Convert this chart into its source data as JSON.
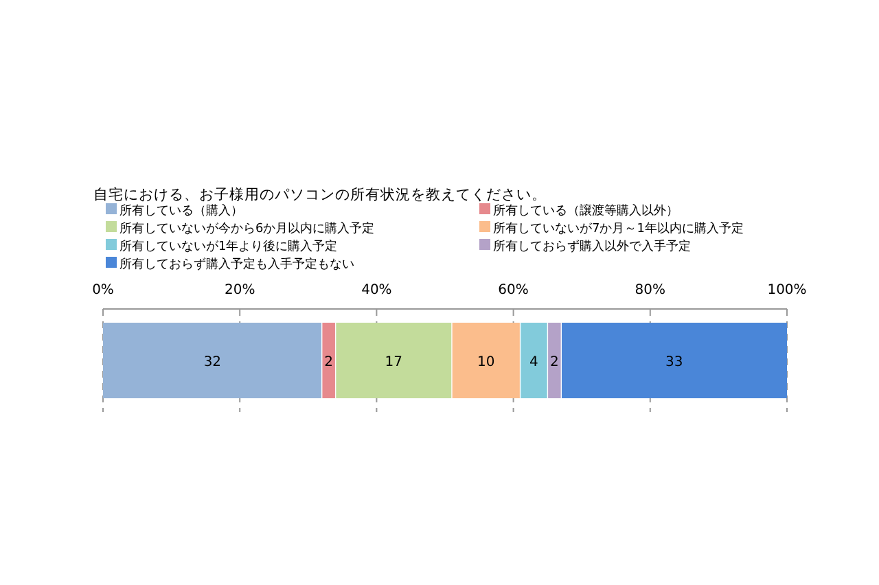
{
  "chart_data": {
    "type": "bar",
    "orientation": "horizontal",
    "stacked": true,
    "title": "自宅における、お子様用のパソコンの所有状況を教えてください。",
    "categories": [
      null
    ],
    "series": [
      {
        "name": "所有している（購入）",
        "color": "#95b3d7",
        "values": [
          32
        ]
      },
      {
        "name": "所有している（譲渡等購入以外）",
        "color": "#e6898d",
        "values": [
          2
        ]
      },
      {
        "name": "所有していないが今から6か月以内に購入予定",
        "color": "#c3dc9b",
        "values": [
          17
        ]
      },
      {
        "name": "所有していないが7か月～1年以内に購入予定",
        "color": "#fbbd8c",
        "values": [
          10
        ]
      },
      {
        "name": "所有していないが1年より後に購入予定",
        "color": "#82cbdb",
        "values": [
          4
        ]
      },
      {
        "name": "所有しておらず購入以外で入手予定",
        "color": "#b4a2c8",
        "values": [
          2
        ]
      },
      {
        "name": "所有しておらず購入予定も入手予定もない",
        "color": "#4a86d8",
        "values": [
          33
        ]
      }
    ],
    "xlim": [
      0,
      100
    ],
    "xticks": [
      {
        "value": 0,
        "label": "0%"
      },
      {
        "value": 20,
        "label": "20%"
      },
      {
        "value": 40,
        "label": "40%"
      },
      {
        "value": 60,
        "label": "60%"
      },
      {
        "value": 80,
        "label": "80%"
      },
      {
        "value": 100,
        "label": "100%"
      }
    ],
    "grid": "x",
    "legend": "top",
    "data_labels": true
  }
}
